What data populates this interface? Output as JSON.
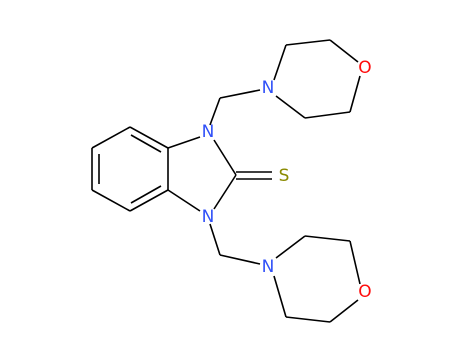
{
  "atoms": [
    "N",
    "N",
    "S",
    "N",
    "O",
    "N",
    "O"
  ]
}
